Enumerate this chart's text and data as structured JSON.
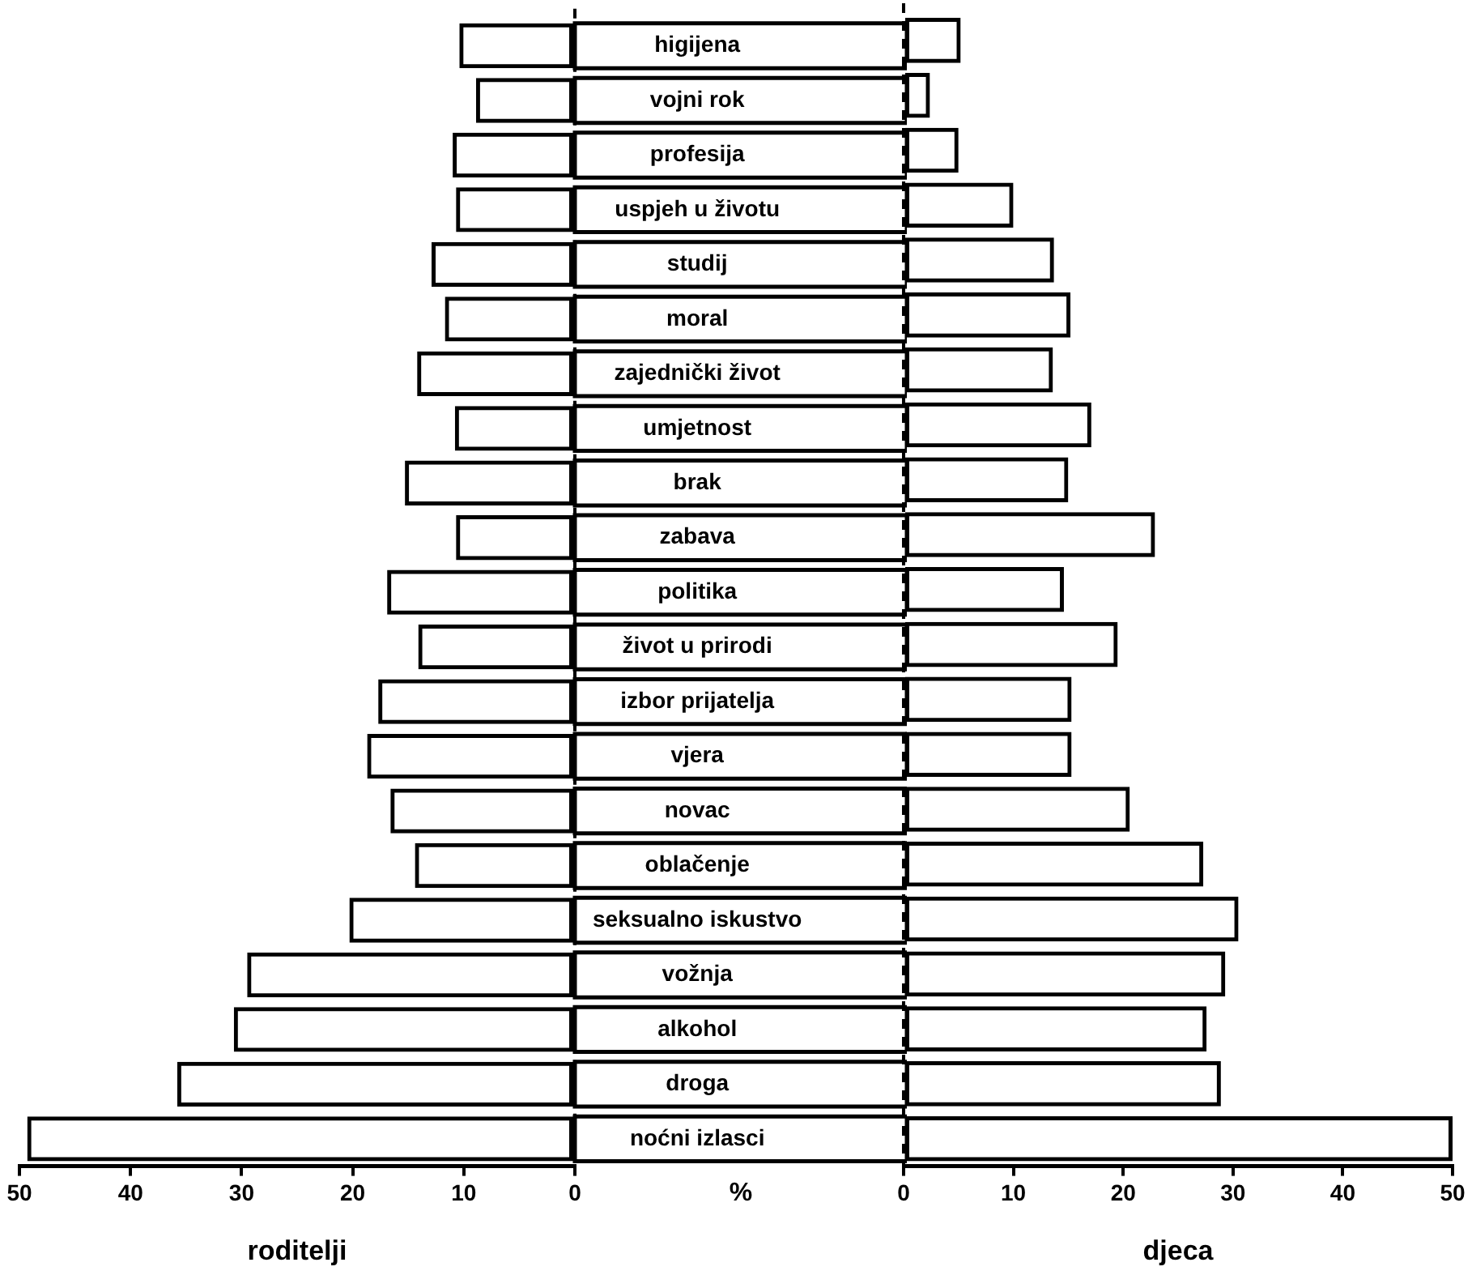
{
  "chart_data": [
    {
      "type": "bar",
      "orientation": "horizontal",
      "categories": [
        "higijena",
        "vojni rok",
        "profesija",
        "uspjeh u životu",
        "studij",
        "moral",
        "zajednički život",
        "umjetnost",
        "brak",
        "zabava",
        "politika",
        "život u prirodi",
        "izbor prijatelja",
        "vjera",
        "novac",
        "oblačenje",
        "seksualno iskustvo",
        "vožnja",
        "alkohol",
        "droga",
        "noćni izlasci"
      ],
      "series": [
        {
          "color": "#000000",
          "values": [
            10.4,
            8.9,
            11,
            10.7,
            12.9,
            11.7,
            14.2,
            10.8,
            15.3,
            10.7,
            16.9,
            14.1,
            17.7,
            18.7,
            16.6,
            14.4,
            20.3,
            29.5,
            30.7,
            35.8,
            49.3
          ]
        }
      ],
      "xlim": [
        50,
        0
      ],
      "xticks": [
        50,
        40,
        30,
        20,
        10,
        0
      ],
      "xlabel": "roditelji",
      "grid": false,
      "annotations": [
        "%"
      ],
      "ref_lines": [
        {
          "axis": "x",
          "value": 0,
          "line_style": "dashed"
        }
      ]
    },
    {
      "type": "bar",
      "orientation": "horizontal",
      "categories": [
        null,
        null,
        null,
        null,
        null,
        null,
        null,
        null,
        null,
        null,
        null,
        null,
        null,
        null,
        null,
        null,
        null,
        null,
        null,
        null,
        null
      ],
      "series": [
        {
          "color": "#000000",
          "values": [
            5.2,
            2.4,
            5,
            10,
            13.7,
            15.2,
            13.6,
            17.1,
            15,
            22.9,
            14.6,
            19.5,
            15.3,
            15.3,
            20.6,
            27.3,
            30.5,
            29.3,
            27.6,
            28.9,
            50
          ]
        }
      ],
      "xlim": [
        0,
        50
      ],
      "xticks": [
        0,
        10,
        20,
        30,
        40,
        50
      ],
      "xlabel": "djeca",
      "grid": false,
      "tick_labels": "x",
      "ref_lines": [
        {
          "axis": "x",
          "value": 0,
          "line_style": "dashed"
        }
      ]
    }
  ]
}
